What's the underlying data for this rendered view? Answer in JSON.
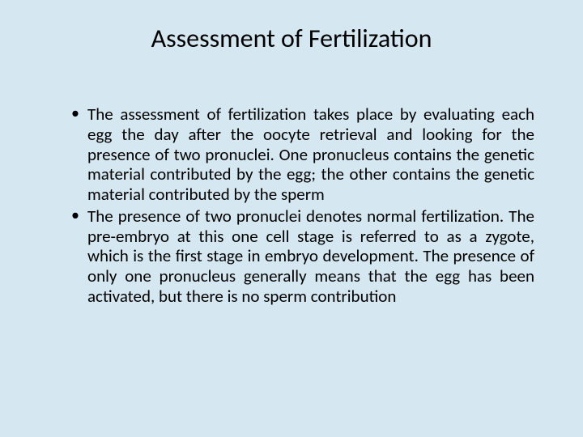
{
  "slide": {
    "title": "Assessment of Fertilization",
    "bullets": [
      "The assessment of fertilization takes place by evaluating each egg the day after the oocyte retrieval and looking for the presence of two pronuclei. One pronucleus contains the genetic material contributed by the egg; the other contains the genetic material contributed by the sperm",
      "The presence of two pronuclei denotes normal fertilization. The pre-embryo at this one cell stage is referred to as a zygote, which is the first stage in embryo development. The presence of only one pronucleus generally means that the egg has been activated, but there is no sperm contribution"
    ],
    "background_color": "#d5e7f0",
    "text_color": "#000000",
    "title_fontsize": 32,
    "body_fontsize": 21,
    "font_family": "Calibri"
  }
}
